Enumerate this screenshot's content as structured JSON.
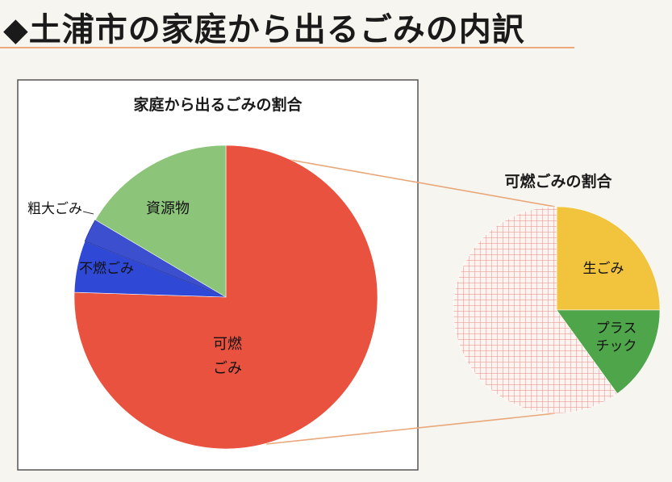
{
  "page": {
    "heading": "◆土浦市の家庭から出るごみの内訳"
  },
  "chart_data": [
    {
      "type": "pie",
      "title": "家庭から出るごみの割合",
      "slices": [
        {
          "label": "可燃ごみ",
          "value": 75.5,
          "color": "#e8523e"
        },
        {
          "label": "不燃ごみ",
          "value": 5.5,
          "color": "#2f49d6"
        },
        {
          "label": "粗大ごみ",
          "value": 2.5,
          "color": "#3b4fcf"
        },
        {
          "label": "資源物",
          "value": 16.5,
          "color": "#8cc47a"
        }
      ]
    },
    {
      "type": "pie",
      "title": "可燃ごみの割合",
      "slices": [
        {
          "label": "生ごみ",
          "value": 25,
          "color": "#f2c33c"
        },
        {
          "label": "プラスチック",
          "value": 15,
          "color": "#4fa64a"
        },
        {
          "label": "",
          "value": 60,
          "color": "#f3b9b0"
        }
      ]
    }
  ]
}
